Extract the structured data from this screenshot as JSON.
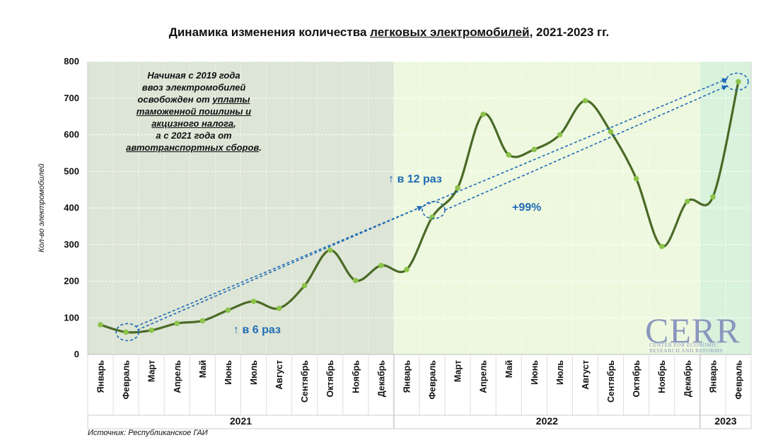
{
  "title": {
    "prefix": "Динамика изменения количества ",
    "underlined": "легковых электромобилей",
    "suffix": ", 2021-2023 гг."
  },
  "chart_data": {
    "type": "line",
    "title": "Динамика изменения количества легковых электромобилей, 2021-2023 гг.",
    "xlabel": "",
    "ylabel": "Кол-во электромобилей",
    "ylim": [
      0,
      800
    ],
    "yticks": [
      0,
      100,
      200,
      300,
      400,
      500,
      600,
      700,
      800
    ],
    "grid": true,
    "categories": [
      "Январь",
      "Февраль",
      "Март",
      "Апрель",
      "Май",
      "Июнь",
      "Июль",
      "Август",
      "Сентябрь",
      "Октябрь",
      "Ноябрь",
      "Декабрь",
      "Январь",
      "Февраль",
      "Март",
      "Апрель",
      "Май",
      "Июнь",
      "Июль",
      "Август",
      "Сентябрь",
      "Октябрь",
      "Ноябрь",
      "Декабрь",
      "Январь",
      "Февраль"
    ],
    "years": [
      {
        "label": "2021",
        "months": 12,
        "shade": "#dde5d6"
      },
      {
        "label": "2022",
        "months": 12,
        "shade": "#eef8df"
      },
      {
        "label": "2023",
        "months": 2,
        "shade": "#d9f2dc"
      }
    ],
    "series": [
      {
        "values": [
          81,
          61,
          66,
          85,
          92,
          121,
          145,
          126,
          188,
          285,
          202,
          243,
          232,
          375,
          455,
          656,
          545,
          560,
          600,
          693,
          608,
          480,
          295,
          418,
          430,
          745
        ]
      }
    ],
    "colors": {
      "line": "#4a6a26",
      "marker": "#8cc34a",
      "annotation": "#1f6bb5"
    }
  },
  "annotations": {
    "six_times": "↑ в 6 раз",
    "twelve_times": "↑ в 12 раз",
    "plus_99": "+99%"
  },
  "note": {
    "l1": "Начиная с 2019 года",
    "l2": "ввоз электромобилей",
    "l3a": "освобожден от ",
    "l3b": "уплаты",
    "l4": "таможенной пошлины и",
    "l5": "акцизного налога",
    "l5b": ",",
    "l6": "а с 2021 года от",
    "l7": "автотранспортных сборов",
    "l7b": "."
  },
  "source": "Источник: Республиканское ГАИ",
  "logo": {
    "main": "CERR",
    "sub1": "CENTER FOR ECONOMIC",
    "sub2": "RESEARCH AND REFORMS"
  }
}
